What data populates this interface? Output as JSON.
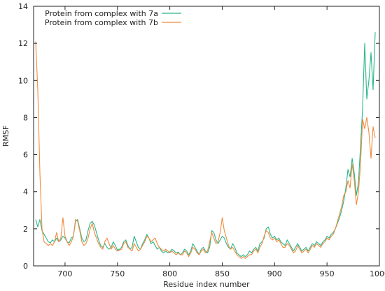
{
  "chart_data": {
    "type": "line",
    "title": "",
    "xlabel": "Residue index number",
    "ylabel": "RMSF",
    "xlim": [
      670,
      1000
    ],
    "ylim": [
      0,
      14
    ],
    "xticks": [
      700,
      750,
      800,
      850,
      900,
      950,
      1000
    ],
    "yticks": [
      0,
      2,
      4,
      6,
      8,
      10,
      12,
      14
    ],
    "grid": false,
    "legend_position": "top-left",
    "series": [
      {
        "name": "Protein from complex with 7a",
        "color": "#2bb58b",
        "points": [
          [
            672,
            2.5
          ],
          [
            674,
            2.1
          ],
          [
            676,
            2.5
          ],
          [
            678,
            1.9
          ],
          [
            680,
            1.7
          ],
          [
            682,
            1.5
          ],
          [
            684,
            1.3
          ],
          [
            686,
            1.25
          ],
          [
            688,
            1.4
          ],
          [
            690,
            1.3
          ],
          [
            692,
            1.5
          ],
          [
            694,
            1.3
          ],
          [
            696,
            1.4
          ],
          [
            698,
            1.6
          ],
          [
            700,
            1.5
          ],
          [
            702,
            1.3
          ],
          [
            704,
            1.25
          ],
          [
            706,
            1.5
          ],
          [
            708,
            1.6
          ],
          [
            710,
            2.4
          ],
          [
            712,
            2.5
          ],
          [
            714,
            2.0
          ],
          [
            716,
            1.5
          ],
          [
            718,
            1.3
          ],
          [
            720,
            1.4
          ],
          [
            722,
            1.9
          ],
          [
            724,
            2.3
          ],
          [
            726,
            2.4
          ],
          [
            728,
            2.2
          ],
          [
            730,
            1.8
          ],
          [
            732,
            1.4
          ],
          [
            734,
            1.1
          ],
          [
            736,
            1.0
          ],
          [
            738,
            1.2
          ],
          [
            740,
            1.0
          ],
          [
            742,
            0.9
          ],
          [
            744,
            1.0
          ],
          [
            746,
            1.3
          ],
          [
            748,
            1.1
          ],
          [
            750,
            0.85
          ],
          [
            752,
            0.9
          ],
          [
            754,
            1.0
          ],
          [
            756,
            1.3
          ],
          [
            758,
            1.4
          ],
          [
            760,
            1.1
          ],
          [
            762,
            0.9
          ],
          [
            764,
            1.0
          ],
          [
            766,
            1.6
          ],
          [
            768,
            1.3
          ],
          [
            770,
            1.0
          ],
          [
            772,
            0.9
          ],
          [
            774,
            1.2
          ],
          [
            776,
            1.4
          ],
          [
            778,
            1.7
          ],
          [
            780,
            1.5
          ],
          [
            782,
            1.2
          ],
          [
            784,
            1.3
          ],
          [
            786,
            1.1
          ],
          [
            788,
            0.9
          ],
          [
            790,
            1.0
          ],
          [
            792,
            0.8
          ],
          [
            794,
            0.7
          ],
          [
            796,
            0.8
          ],
          [
            798,
            0.7
          ],
          [
            800,
            0.75
          ],
          [
            802,
            0.9
          ],
          [
            804,
            0.8
          ],
          [
            806,
            0.7
          ],
          [
            808,
            0.75
          ],
          [
            810,
            0.6
          ],
          [
            812,
            0.7
          ],
          [
            814,
            0.9
          ],
          [
            816,
            0.8
          ],
          [
            818,
            0.6
          ],
          [
            820,
            0.8
          ],
          [
            822,
            1.2
          ],
          [
            824,
            1.0
          ],
          [
            826,
            0.8
          ],
          [
            828,
            0.6
          ],
          [
            830,
            0.9
          ],
          [
            832,
            1.0
          ],
          [
            834,
            0.8
          ],
          [
            836,
            0.7
          ],
          [
            838,
            1.0
          ],
          [
            840,
            1.9
          ],
          [
            842,
            1.8
          ],
          [
            844,
            1.4
          ],
          [
            846,
            1.2
          ],
          [
            848,
            1.4
          ],
          [
            850,
            1.6
          ],
          [
            852,
            1.5
          ],
          [
            854,
            1.2
          ],
          [
            856,
            1.0
          ],
          [
            858,
            0.9
          ],
          [
            860,
            1.2
          ],
          [
            862,
            1.0
          ],
          [
            864,
            0.7
          ],
          [
            866,
            0.6
          ],
          [
            868,
            0.5
          ],
          [
            870,
            0.6
          ],
          [
            872,
            0.5
          ],
          [
            874,
            0.6
          ],
          [
            876,
            0.8
          ],
          [
            878,
            0.7
          ],
          [
            880,
            0.9
          ],
          [
            882,
            1.0
          ],
          [
            884,
            0.8
          ],
          [
            886,
            1.2
          ],
          [
            888,
            1.3
          ],
          [
            890,
            1.5
          ],
          [
            892,
            2.0
          ],
          [
            894,
            2.1
          ],
          [
            896,
            1.7
          ],
          [
            898,
            1.5
          ],
          [
            900,
            1.6
          ],
          [
            902,
            1.4
          ],
          [
            904,
            1.5
          ],
          [
            906,
            1.3
          ],
          [
            908,
            1.2
          ],
          [
            910,
            1.1
          ],
          [
            912,
            1.4
          ],
          [
            914,
            1.2
          ],
          [
            916,
            1.0
          ],
          [
            918,
            0.8
          ],
          [
            920,
            1.0
          ],
          [
            922,
            1.2
          ],
          [
            924,
            1.0
          ],
          [
            926,
            0.8
          ],
          [
            928,
            0.9
          ],
          [
            930,
            1.0
          ],
          [
            932,
            0.8
          ],
          [
            934,
            1.0
          ],
          [
            936,
            1.2
          ],
          [
            938,
            1.1
          ],
          [
            940,
            1.3
          ],
          [
            942,
            1.2
          ],
          [
            944,
            1.1
          ],
          [
            946,
            1.3
          ],
          [
            948,
            1.4
          ],
          [
            950,
            1.6
          ],
          [
            952,
            1.5
          ],
          [
            954,
            1.7
          ],
          [
            956,
            1.8
          ],
          [
            958,
            2.0
          ],
          [
            960,
            2.3
          ],
          [
            962,
            2.6
          ],
          [
            964,
            3.0
          ],
          [
            966,
            3.5
          ],
          [
            968,
            4.2
          ],
          [
            970,
            5.2
          ],
          [
            972,
            4.8
          ],
          [
            974,
            5.8
          ],
          [
            976,
            5.0
          ],
          [
            978,
            3.8
          ],
          [
            980,
            4.5
          ],
          [
            982,
            6.5
          ],
          [
            984,
            8.5
          ],
          [
            986,
            12.0
          ],
          [
            988,
            9.0
          ],
          [
            990,
            10.0
          ],
          [
            992,
            11.5
          ],
          [
            994,
            9.5
          ],
          [
            996,
            12.6
          ]
        ]
      },
      {
        "name": "Protein from complex with 7b",
        "color": "#f08a3c",
        "points": [
          [
            672,
            12.1
          ],
          [
            674,
            9.5
          ],
          [
            676,
            5.0
          ],
          [
            678,
            2.0
          ],
          [
            680,
            1.3
          ],
          [
            682,
            1.2
          ],
          [
            684,
            1.1
          ],
          [
            686,
            1.2
          ],
          [
            688,
            1.1
          ],
          [
            690,
            1.3
          ],
          [
            692,
            1.8
          ],
          [
            694,
            1.3
          ],
          [
            696,
            1.5
          ],
          [
            698,
            2.6
          ],
          [
            700,
            1.6
          ],
          [
            702,
            1.3
          ],
          [
            704,
            1.1
          ],
          [
            706,
            1.3
          ],
          [
            708,
            1.6
          ],
          [
            710,
            2.5
          ],
          [
            712,
            2.4
          ],
          [
            714,
            1.9
          ],
          [
            716,
            1.3
          ],
          [
            718,
            1.1
          ],
          [
            720,
            1.2
          ],
          [
            722,
            1.5
          ],
          [
            724,
            2.0
          ],
          [
            726,
            2.3
          ],
          [
            728,
            1.8
          ],
          [
            730,
            1.5
          ],
          [
            732,
            1.2
          ],
          [
            734,
            1.0
          ],
          [
            736,
            0.9
          ],
          [
            738,
            1.3
          ],
          [
            740,
            1.5
          ],
          [
            742,
            1.2
          ],
          [
            744,
            0.9
          ],
          [
            746,
            1.1
          ],
          [
            748,
            0.9
          ],
          [
            750,
            0.8
          ],
          [
            752,
            0.85
          ],
          [
            754,
            0.9
          ],
          [
            756,
            1.2
          ],
          [
            758,
            1.3
          ],
          [
            760,
            1.0
          ],
          [
            762,
            0.9
          ],
          [
            764,
            0.8
          ],
          [
            766,
            1.2
          ],
          [
            768,
            1.0
          ],
          [
            770,
            0.8
          ],
          [
            772,
            0.9
          ],
          [
            774,
            1.1
          ],
          [
            776,
            1.3
          ],
          [
            778,
            1.6
          ],
          [
            780,
            1.5
          ],
          [
            782,
            1.3
          ],
          [
            784,
            1.4
          ],
          [
            786,
            1.5
          ],
          [
            788,
            1.2
          ],
          [
            790,
            1.0
          ],
          [
            792,
            0.9
          ],
          [
            794,
            0.8
          ],
          [
            796,
            0.9
          ],
          [
            798,
            0.8
          ],
          [
            800,
            0.7
          ],
          [
            802,
            0.8
          ],
          [
            804,
            0.7
          ],
          [
            806,
            0.6
          ],
          [
            808,
            0.7
          ],
          [
            810,
            0.6
          ],
          [
            812,
            0.6
          ],
          [
            814,
            0.8
          ],
          [
            816,
            0.7
          ],
          [
            818,
            0.5
          ],
          [
            820,
            0.7
          ],
          [
            822,
            1.0
          ],
          [
            824,
            0.9
          ],
          [
            826,
            0.7
          ],
          [
            828,
            0.6
          ],
          [
            830,
            0.8
          ],
          [
            832,
            0.9
          ],
          [
            834,
            0.7
          ],
          [
            836,
            0.8
          ],
          [
            838,
            1.3
          ],
          [
            840,
            1.8
          ],
          [
            842,
            1.5
          ],
          [
            844,
            1.2
          ],
          [
            846,
            1.3
          ],
          [
            848,
            1.8
          ],
          [
            850,
            2.6
          ],
          [
            852,
            1.9
          ],
          [
            854,
            1.5
          ],
          [
            856,
            1.1
          ],
          [
            858,
            0.9
          ],
          [
            860,
            1.0
          ],
          [
            862,
            0.8
          ],
          [
            864,
            0.6
          ],
          [
            866,
            0.5
          ],
          [
            868,
            0.4
          ],
          [
            870,
            0.5
          ],
          [
            872,
            0.4
          ],
          [
            874,
            0.5
          ],
          [
            876,
            0.6
          ],
          [
            878,
            0.6
          ],
          [
            880,
            0.8
          ],
          [
            882,
            0.9
          ],
          [
            884,
            0.7
          ],
          [
            886,
            1.0
          ],
          [
            888,
            1.2
          ],
          [
            890,
            1.6
          ],
          [
            892,
            1.9
          ],
          [
            894,
            1.8
          ],
          [
            896,
            1.5
          ],
          [
            898,
            1.4
          ],
          [
            900,
            1.5
          ],
          [
            902,
            1.3
          ],
          [
            904,
            1.4
          ],
          [
            906,
            1.2
          ],
          [
            908,
            1.0
          ],
          [
            910,
            1.0
          ],
          [
            912,
            1.2
          ],
          [
            914,
            1.1
          ],
          [
            916,
            0.9
          ],
          [
            918,
            0.7
          ],
          [
            920,
            0.8
          ],
          [
            922,
            1.1
          ],
          [
            924,
            0.9
          ],
          [
            926,
            0.7
          ],
          [
            928,
            0.8
          ],
          [
            930,
            0.9
          ],
          [
            932,
            0.7
          ],
          [
            934,
            0.9
          ],
          [
            936,
            1.1
          ],
          [
            938,
            1.0
          ],
          [
            940,
            1.2
          ],
          [
            942,
            1.1
          ],
          [
            944,
            1.0
          ],
          [
            946,
            1.2
          ],
          [
            948,
            1.3
          ],
          [
            950,
            1.5
          ],
          [
            952,
            1.4
          ],
          [
            954,
            1.6
          ],
          [
            956,
            1.7
          ],
          [
            958,
            2.0
          ],
          [
            960,
            2.4
          ],
          [
            962,
            2.8
          ],
          [
            964,
            3.2
          ],
          [
            966,
            3.8
          ],
          [
            968,
            4.0
          ],
          [
            970,
            4.6
          ],
          [
            972,
            4.2
          ],
          [
            974,
            5.5
          ],
          [
            976,
            4.6
          ],
          [
            978,
            3.3
          ],
          [
            980,
            4.0
          ],
          [
            982,
            5.5
          ],
          [
            984,
            7.9
          ],
          [
            986,
            7.4
          ],
          [
            988,
            8.0
          ],
          [
            990,
            7.2
          ],
          [
            992,
            5.8
          ],
          [
            994,
            7.5
          ],
          [
            996,
            6.9
          ]
        ]
      }
    ]
  }
}
